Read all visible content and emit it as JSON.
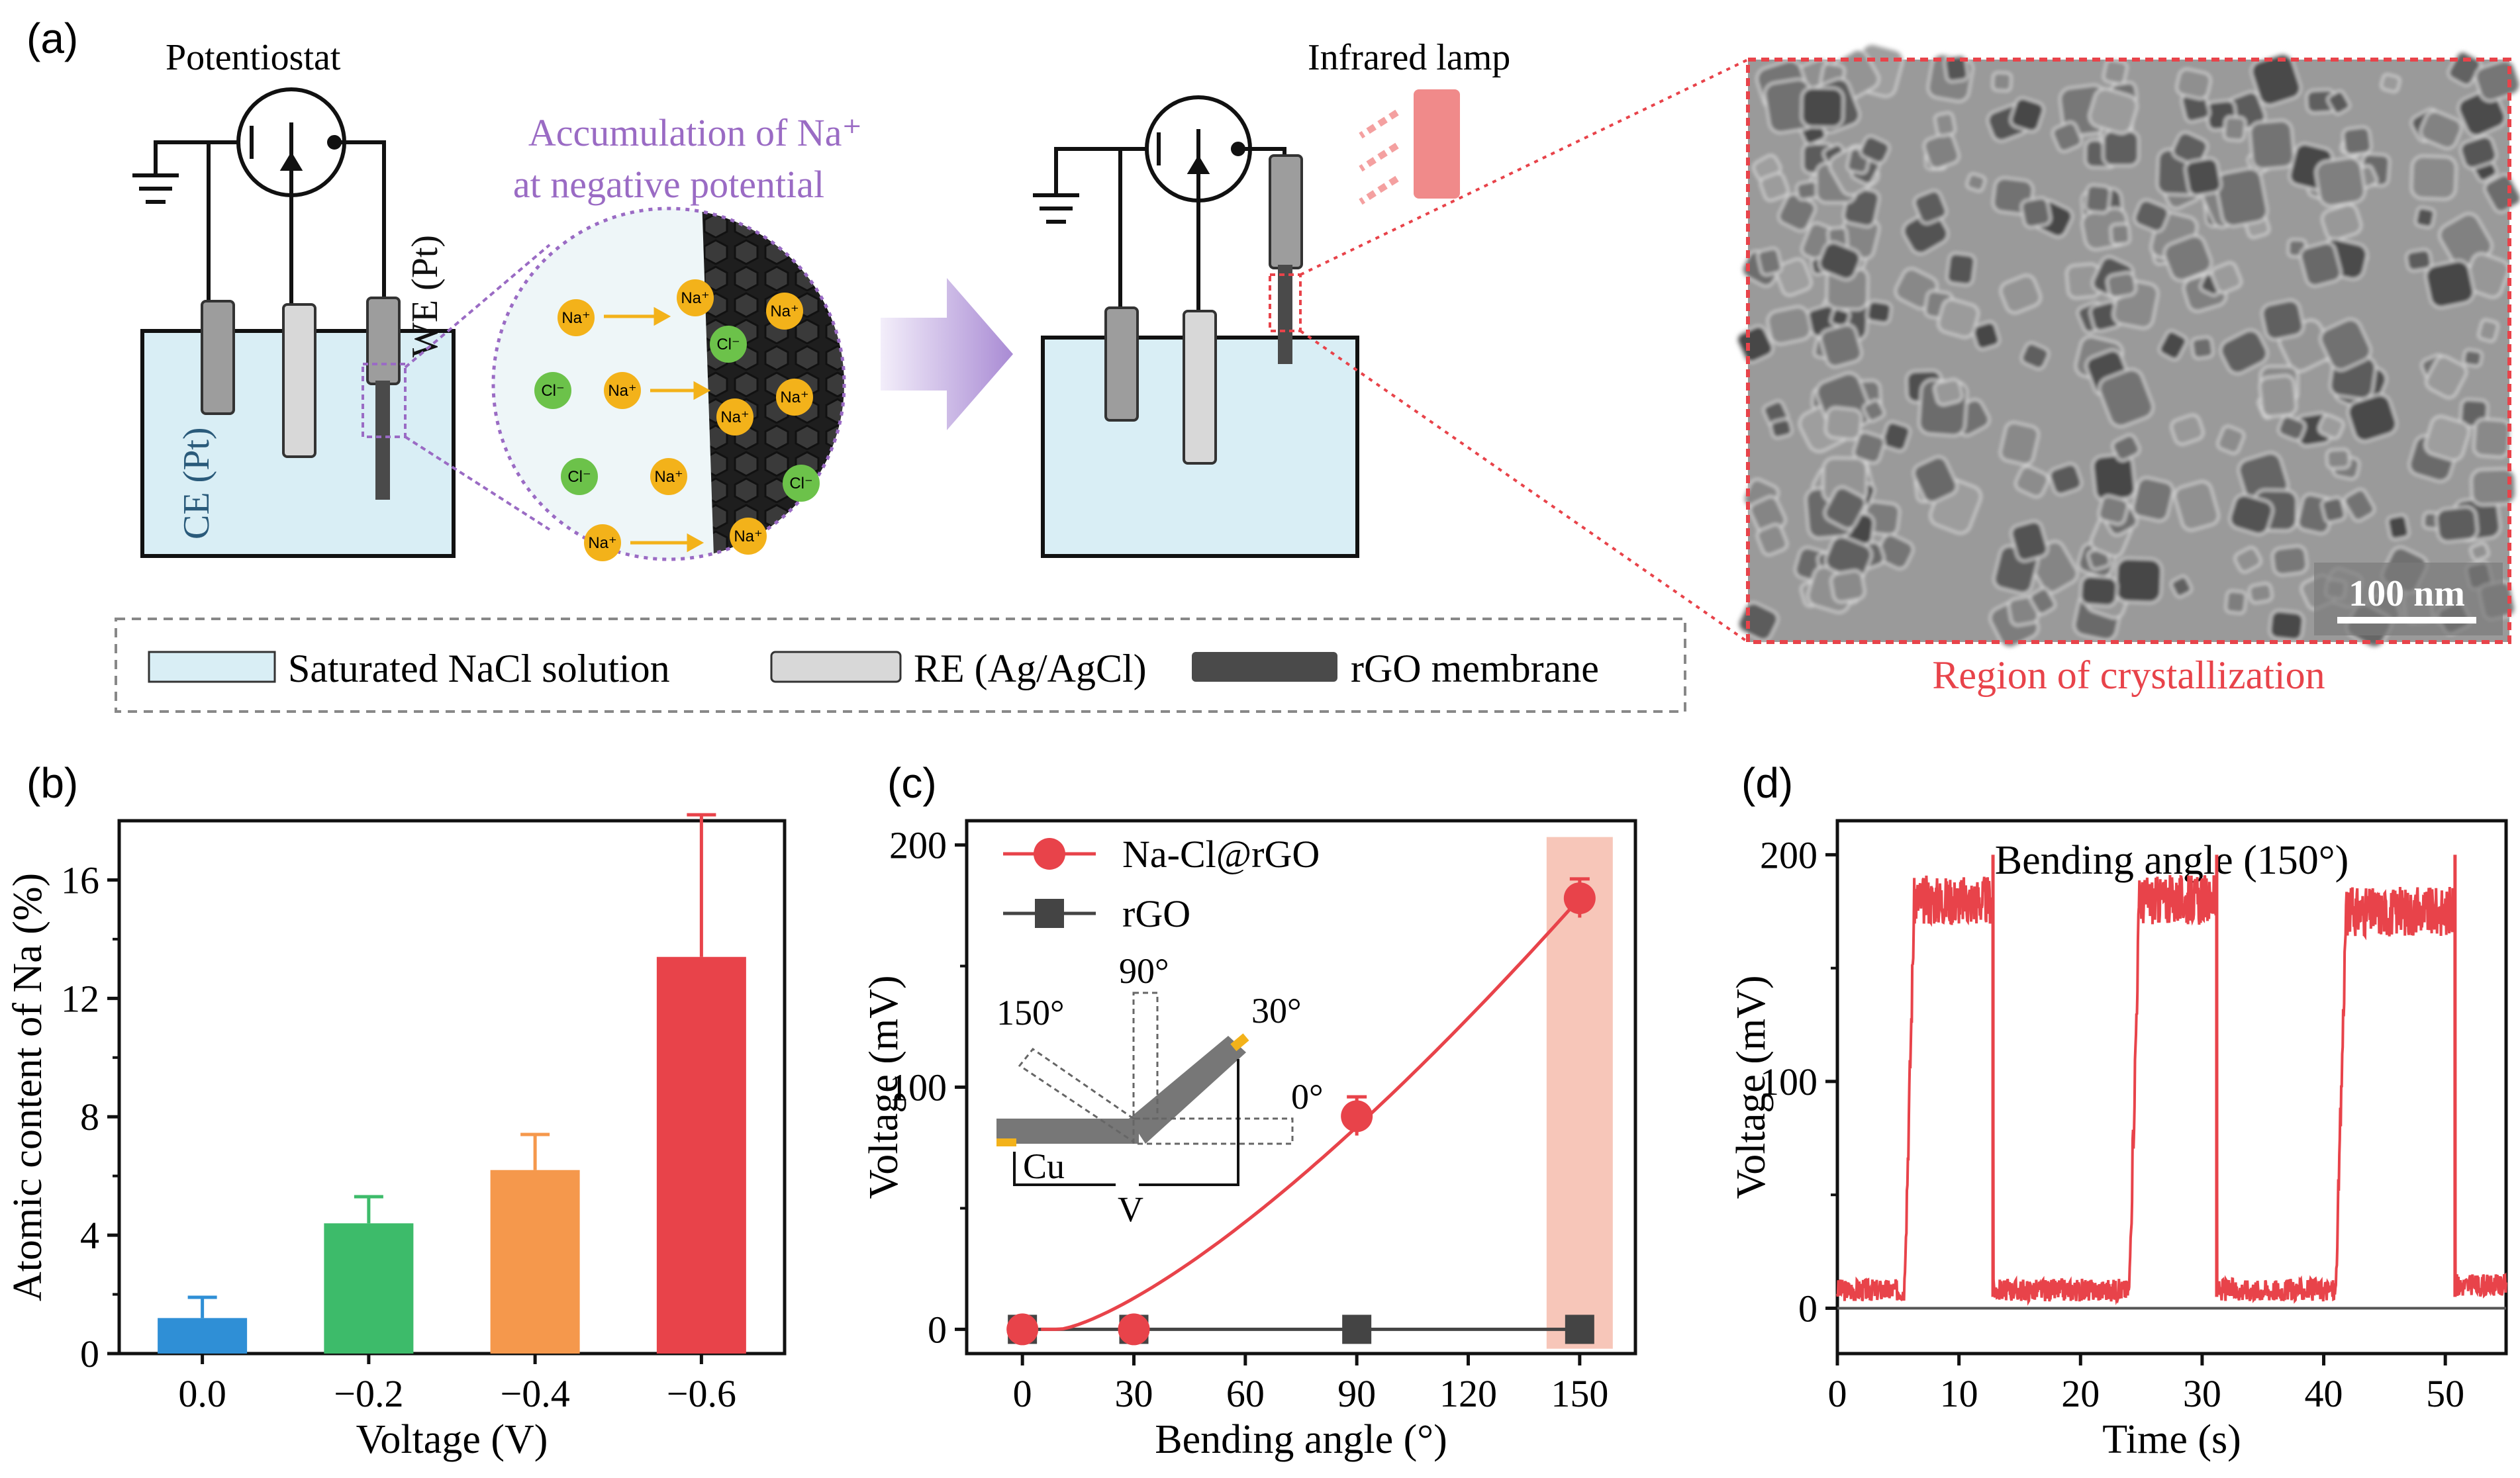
{
  "colors": {
    "red": "#e8434a",
    "blue": "#2f8fd6",
    "green": "#3dbb6a",
    "orange": "#f5984c",
    "purple": "#9a6bc4",
    "liquid": "#d9eef5",
    "dark": "#4a4a4a",
    "rod_grey": "#9d9d9d",
    "rod_light": "#d8d8d8",
    "na_ion": "#f3b21a",
    "cl_ion": "#6cc24a",
    "shade": "#f7c6b9",
    "tem_border": "#e8434a"
  },
  "panel_a": {
    "label": "(a)",
    "potentiostat": "Potentiostat",
    "accumulation_line1": "Accumulation of Na⁺",
    "accumulation_line2": "at negative potential",
    "we_label": "WE (Pt)",
    "ce_label": "CE (Pt)",
    "infrared_lamp": "Infrared lamp",
    "scale_bar": "100 nm",
    "region": "Region of crystallization",
    "ions_na": "Na⁺",
    "ions_cl": "Cl⁻",
    "legend": [
      {
        "label": "Saturated NaCl solution",
        "swatch": "liquid"
      },
      {
        "label": "RE (Ag/AgCl)",
        "swatch": "rod_light"
      },
      {
        "label": "rGO membrane",
        "swatch": "dark"
      }
    ]
  },
  "panel_b": {
    "label": "(b)"
  },
  "panel_c": {
    "label": "(c)"
  },
  "panel_d": {
    "label": "(d)"
  },
  "chart_data": [
    {
      "id": "b",
      "type": "bar",
      "xlabel": "Voltage (V)",
      "ylabel": "Atomic content of Na (%)",
      "categories": [
        "0.0",
        "−0.2",
        "−0.4",
        "−0.6"
      ],
      "values": [
        1.2,
        4.4,
        6.2,
        13.4
      ],
      "errors": [
        0.7,
        0.9,
        1.2,
        4.8
      ],
      "bar_colors": [
        "#2f8fd6",
        "#3dbb6a",
        "#f5984c",
        "#e8434a"
      ],
      "ylim": [
        0,
        18
      ],
      "yticks": [
        0,
        4,
        8,
        12,
        16
      ]
    },
    {
      "id": "c",
      "type": "line",
      "xlabel": "Bending angle (°)",
      "ylabel": "Voltage (mV)",
      "xlim": [
        -15,
        165
      ],
      "ylim": [
        -10,
        210
      ],
      "xticks": [
        0,
        30,
        60,
        90,
        120,
        150
      ],
      "yticks": [
        0,
        100,
        200
      ],
      "series": [
        {
          "name": "Na-Cl@rGO",
          "marker": "circle",
          "color": "#e8434a",
          "x": [
            0,
            30,
            90,
            150
          ],
          "y": [
            0,
            0,
            88,
            178
          ],
          "errors": [
            3,
            3,
            8,
            8
          ]
        },
        {
          "name": "rGO",
          "marker": "square",
          "color": "#444444",
          "x": [
            0,
            30,
            90,
            150
          ],
          "y": [
            0,
            0,
            0,
            0
          ]
        }
      ],
      "highlight_x": 150,
      "inset": {
        "angles": [
          "150°",
          "90°",
          "30°",
          "0°"
        ],
        "cu": "Cu",
        "v": "V"
      }
    },
    {
      "id": "d",
      "type": "line",
      "title": "Bending angle (150°)",
      "xlabel": "Time (s)",
      "ylabel": "Voltage (mV)",
      "xlim": [
        0,
        55
      ],
      "ylim": [
        -20,
        215
      ],
      "xticks": [
        0,
        10,
        20,
        30,
        40,
        50
      ],
      "yticks": [
        0,
        100,
        200
      ],
      "on_intervals": [
        [
          5.5,
          12.8
        ],
        [
          24,
          31.2
        ],
        [
          41,
          50.8
        ]
      ],
      "on_levels": [
        180,
        180,
        175
      ],
      "off_level": 8,
      "color": "#e8434a"
    }
  ]
}
